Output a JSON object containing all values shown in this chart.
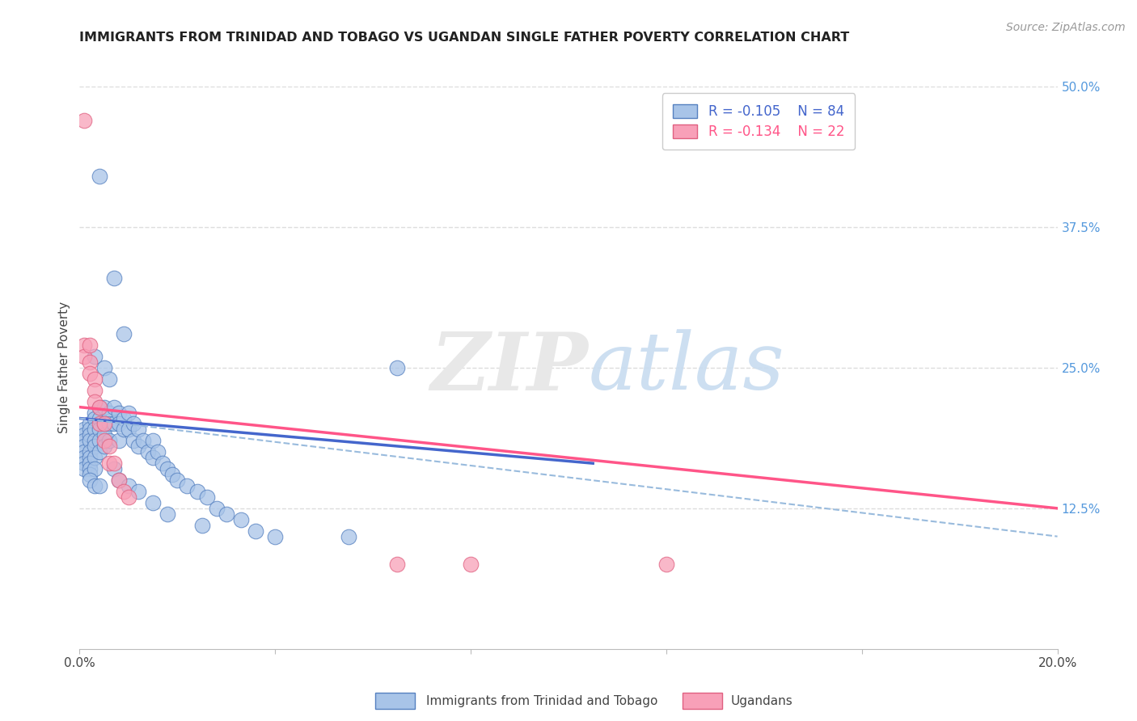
{
  "title": "IMMIGRANTS FROM TRINIDAD AND TOBAGO VS UGANDAN SINGLE FATHER POVERTY CORRELATION CHART",
  "source": "Source: ZipAtlas.com",
  "ylabel": "Single Father Poverty",
  "xlim": [
    0.0,
    0.2
  ],
  "ylim": [
    0.0,
    0.5
  ],
  "legend_blue_r": "-0.105",
  "legend_blue_n": "84",
  "legend_pink_r": "-0.134",
  "legend_pink_n": "22",
  "legend_label_blue": "Immigrants from Trinidad and Tobago",
  "legend_label_pink": "Ugandans",
  "watermark_zip": "ZIP",
  "watermark_atlas": "atlas",
  "color_blue_fill": "#A8C4E8",
  "color_blue_edge": "#5580C0",
  "color_pink_fill": "#F8A0B8",
  "color_pink_edge": "#E06080",
  "color_line_blue": "#4466CC",
  "color_line_pink": "#FF5588",
  "color_dashed": "#99BBDD",
  "grid_color": "#DDDDDD",
  "background_color": "#FFFFFF",
  "blue_line_x0": 0.0,
  "blue_line_x1": 0.105,
  "blue_line_y0": 0.205,
  "blue_line_y1": 0.165,
  "pink_line_x0": 0.0,
  "pink_line_x1": 0.2,
  "pink_line_y0": 0.215,
  "pink_line_y1": 0.125,
  "dash_line_x0": 0.0,
  "dash_line_x1": 0.2,
  "dash_line_y0": 0.205,
  "dash_line_y1": 0.1,
  "blue_x": [
    0.001,
    0.001,
    0.001,
    0.001,
    0.001,
    0.001,
    0.001,
    0.001,
    0.002,
    0.002,
    0.002,
    0.002,
    0.002,
    0.002,
    0.002,
    0.002,
    0.002,
    0.003,
    0.003,
    0.003,
    0.003,
    0.003,
    0.003,
    0.003,
    0.004,
    0.004,
    0.004,
    0.004,
    0.004,
    0.005,
    0.005,
    0.005,
    0.005,
    0.006,
    0.006,
    0.006,
    0.007,
    0.007,
    0.008,
    0.008,
    0.008,
    0.009,
    0.009,
    0.01,
    0.01,
    0.011,
    0.011,
    0.012,
    0.012,
    0.013,
    0.014,
    0.015,
    0.015,
    0.016,
    0.017,
    0.018,
    0.019,
    0.02,
    0.022,
    0.024,
    0.026,
    0.028,
    0.03,
    0.033,
    0.036,
    0.004,
    0.007,
    0.009,
    0.003,
    0.005,
    0.006,
    0.002,
    0.003,
    0.004,
    0.007,
    0.008,
    0.01,
    0.012,
    0.015,
    0.018,
    0.025,
    0.04,
    0.055,
    0.065
  ],
  "blue_y": [
    0.195,
    0.19,
    0.185,
    0.18,
    0.175,
    0.17,
    0.165,
    0.16,
    0.2,
    0.195,
    0.19,
    0.185,
    0.175,
    0.17,
    0.165,
    0.16,
    0.155,
    0.21,
    0.205,
    0.195,
    0.185,
    0.18,
    0.17,
    0.16,
    0.215,
    0.205,
    0.195,
    0.185,
    0.175,
    0.215,
    0.2,
    0.19,
    0.18,
    0.21,
    0.2,
    0.185,
    0.215,
    0.2,
    0.21,
    0.2,
    0.185,
    0.205,
    0.195,
    0.21,
    0.195,
    0.2,
    0.185,
    0.195,
    0.18,
    0.185,
    0.175,
    0.185,
    0.17,
    0.175,
    0.165,
    0.16,
    0.155,
    0.15,
    0.145,
    0.14,
    0.135,
    0.125,
    0.12,
    0.115,
    0.105,
    0.42,
    0.33,
    0.28,
    0.26,
    0.25,
    0.24,
    0.15,
    0.145,
    0.145,
    0.16,
    0.15,
    0.145,
    0.14,
    0.13,
    0.12,
    0.11,
    0.1,
    0.1,
    0.25
  ],
  "pink_x": [
    0.001,
    0.001,
    0.001,
    0.002,
    0.002,
    0.002,
    0.003,
    0.003,
    0.003,
    0.004,
    0.004,
    0.005,
    0.005,
    0.006,
    0.006,
    0.007,
    0.008,
    0.009,
    0.01,
    0.065,
    0.08,
    0.12
  ],
  "pink_y": [
    0.47,
    0.27,
    0.26,
    0.27,
    0.255,
    0.245,
    0.24,
    0.23,
    0.22,
    0.215,
    0.2,
    0.2,
    0.185,
    0.18,
    0.165,
    0.165,
    0.15,
    0.14,
    0.135,
    0.075,
    0.075,
    0.075
  ]
}
